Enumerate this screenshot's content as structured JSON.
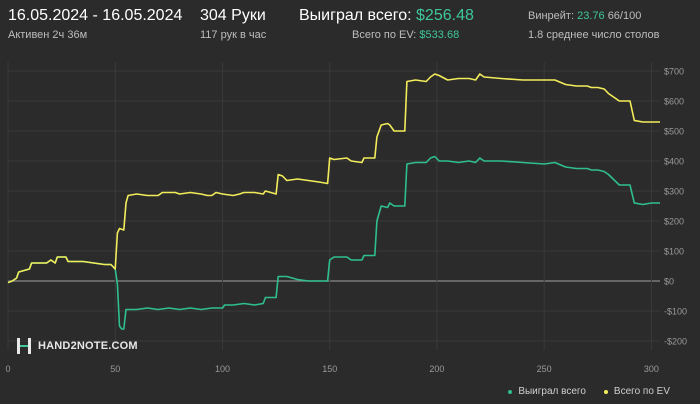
{
  "header": {
    "date_range": "16.05.2024 - 16.05.2024",
    "active": "Активен 2ч 36м",
    "hands": "304 Руки",
    "hands_per_hour": "117 рук в час",
    "won_label": "Выиграл всего:",
    "won_value": "$256.48",
    "ev_label": "Всего по EV:",
    "ev_value": "$533.68",
    "winrate_label": "Винрейт:",
    "winrate_value": "23.76",
    "winrate_hands": "66/100",
    "tables": "1.8 среднее число столов"
  },
  "logo_text": "HAND2NOTE.COM",
  "colors": {
    "background": "#2b2b2b",
    "won_series": "#2fbf8f",
    "ev_series": "#f3ec5a",
    "accent_green": "#3fc79c"
  },
  "chart_data": {
    "type": "line",
    "xlim": [
      0,
      304
    ],
    "ylim": [
      -230,
      730
    ],
    "x_ticks": [
      0,
      50,
      100,
      150,
      200,
      250,
      300
    ],
    "x_tick_labels": [
      "0",
      "50",
      "100",
      "150",
      "200",
      "250",
      "300"
    ],
    "y_ticks": [
      700,
      600,
      500,
      400,
      300,
      200,
      100,
      0,
      -100,
      -200
    ],
    "y_tick_labels": [
      "$700",
      "$600",
      "$500",
      "$400",
      "$300",
      "$200",
      "$100",
      "$0",
      "-$100",
      "-$200"
    ],
    "grid": true,
    "legend_position": "bottom-right",
    "series": [
      {
        "name": "Выиграл всего",
        "color": "#2fbf8f",
        "points": [
          [
            0,
            -5
          ],
          [
            2,
            0
          ],
          [
            4,
            10
          ],
          [
            5,
            30
          ],
          [
            10,
            40
          ],
          [
            11,
            60
          ],
          [
            18,
            60
          ],
          [
            20,
            70
          ],
          [
            21,
            65
          ],
          [
            22,
            60
          ],
          [
            23,
            80
          ],
          [
            27,
            80
          ],
          [
            28,
            65
          ],
          [
            35,
            65
          ],
          [
            40,
            60
          ],
          [
            45,
            55
          ],
          [
            48,
            55
          ],
          [
            50,
            40
          ],
          [
            51,
            -10
          ],
          [
            52,
            -150
          ],
          [
            53,
            -160
          ],
          [
            54,
            -160
          ],
          [
            55,
            -95
          ],
          [
            60,
            -95
          ],
          [
            65,
            -90
          ],
          [
            70,
            -95
          ],
          [
            75,
            -90
          ],
          [
            80,
            -95
          ],
          [
            85,
            -90
          ],
          [
            90,
            -95
          ],
          [
            95,
            -90
          ],
          [
            100,
            -90
          ],
          [
            101,
            -80
          ],
          [
            105,
            -80
          ],
          [
            110,
            -75
          ],
          [
            115,
            -80
          ],
          [
            119,
            -75
          ],
          [
            120,
            -55
          ],
          [
            125,
            -55
          ],
          [
            126,
            15
          ],
          [
            130,
            15
          ],
          [
            135,
            5
          ],
          [
            140,
            0
          ],
          [
            145,
            0
          ],
          [
            149,
            0
          ],
          [
            150,
            70
          ],
          [
            152,
            80
          ],
          [
            158,
            80
          ],
          [
            160,
            70
          ],
          [
            165,
            70
          ],
          [
            166,
            85
          ],
          [
            171,
            85
          ],
          [
            172,
            200
          ],
          [
            174,
            250
          ],
          [
            177,
            245
          ],
          [
            178,
            260
          ],
          [
            180,
            250
          ],
          [
            185,
            250
          ],
          [
            186,
            390
          ],
          [
            190,
            395
          ],
          [
            195,
            395
          ],
          [
            197,
            410
          ],
          [
            199,
            415
          ],
          [
            201,
            400
          ],
          [
            205,
            400
          ],
          [
            210,
            395
          ],
          [
            215,
            400
          ],
          [
            218,
            395
          ],
          [
            220,
            410
          ],
          [
            222,
            400
          ],
          [
            230,
            400
          ],
          [
            240,
            395
          ],
          [
            250,
            390
          ],
          [
            255,
            395
          ],
          [
            260,
            380
          ],
          [
            265,
            375
          ],
          [
            270,
            375
          ],
          [
            272,
            370
          ],
          [
            275,
            370
          ],
          [
            278,
            365
          ],
          [
            280,
            355
          ],
          [
            285,
            320
          ],
          [
            290,
            320
          ],
          [
            292,
            260
          ],
          [
            296,
            255
          ],
          [
            300,
            260
          ],
          [
            304,
            260
          ]
        ]
      },
      {
        "name": "Всего по EV",
        "color": "#f3ec5a",
        "points": [
          [
            0,
            -5
          ],
          [
            2,
            0
          ],
          [
            4,
            10
          ],
          [
            5,
            30
          ],
          [
            10,
            40
          ],
          [
            11,
            60
          ],
          [
            18,
            60
          ],
          [
            20,
            70
          ],
          [
            21,
            65
          ],
          [
            22,
            60
          ],
          [
            23,
            80
          ],
          [
            27,
            80
          ],
          [
            28,
            65
          ],
          [
            35,
            65
          ],
          [
            40,
            60
          ],
          [
            45,
            55
          ],
          [
            48,
            55
          ],
          [
            50,
            40
          ],
          [
            51,
            160
          ],
          [
            52,
            175
          ],
          [
            54,
            170
          ],
          [
            55,
            260
          ],
          [
            56,
            285
          ],
          [
            60,
            290
          ],
          [
            65,
            285
          ],
          [
            70,
            285
          ],
          [
            72,
            295
          ],
          [
            78,
            295
          ],
          [
            80,
            290
          ],
          [
            85,
            295
          ],
          [
            90,
            290
          ],
          [
            93,
            285
          ],
          [
            95,
            285
          ],
          [
            97,
            295
          ],
          [
            100,
            290
          ],
          [
            105,
            285
          ],
          [
            108,
            290
          ],
          [
            110,
            295
          ],
          [
            115,
            295
          ],
          [
            119,
            290
          ],
          [
            120,
            300
          ],
          [
            125,
            290
          ],
          [
            126,
            355
          ],
          [
            128,
            350
          ],
          [
            130,
            335
          ],
          [
            135,
            340
          ],
          [
            140,
            335
          ],
          [
            145,
            330
          ],
          [
            149,
            325
          ],
          [
            150,
            410
          ],
          [
            152,
            405
          ],
          [
            158,
            410
          ],
          [
            160,
            400
          ],
          [
            165,
            395
          ],
          [
            166,
            410
          ],
          [
            171,
            410
          ],
          [
            172,
            480
          ],
          [
            174,
            520
          ],
          [
            177,
            525
          ],
          [
            178,
            520
          ],
          [
            180,
            500
          ],
          [
            185,
            500
          ],
          [
            186,
            665
          ],
          [
            190,
            670
          ],
          [
            195,
            665
          ],
          [
            197,
            680
          ],
          [
            199,
            690
          ],
          [
            201,
            685
          ],
          [
            205,
            670
          ],
          [
            210,
            675
          ],
          [
            215,
            675
          ],
          [
            218,
            670
          ],
          [
            220,
            690
          ],
          [
            222,
            680
          ],
          [
            230,
            675
          ],
          [
            240,
            670
          ],
          [
            250,
            670
          ],
          [
            255,
            670
          ],
          [
            260,
            655
          ],
          [
            265,
            650
          ],
          [
            270,
            650
          ],
          [
            272,
            645
          ],
          [
            275,
            645
          ],
          [
            278,
            640
          ],
          [
            280,
            625
          ],
          [
            285,
            600
          ],
          [
            290,
            600
          ],
          [
            292,
            535
          ],
          [
            296,
            530
          ],
          [
            300,
            530
          ],
          [
            304,
            530
          ]
        ]
      }
    ]
  }
}
